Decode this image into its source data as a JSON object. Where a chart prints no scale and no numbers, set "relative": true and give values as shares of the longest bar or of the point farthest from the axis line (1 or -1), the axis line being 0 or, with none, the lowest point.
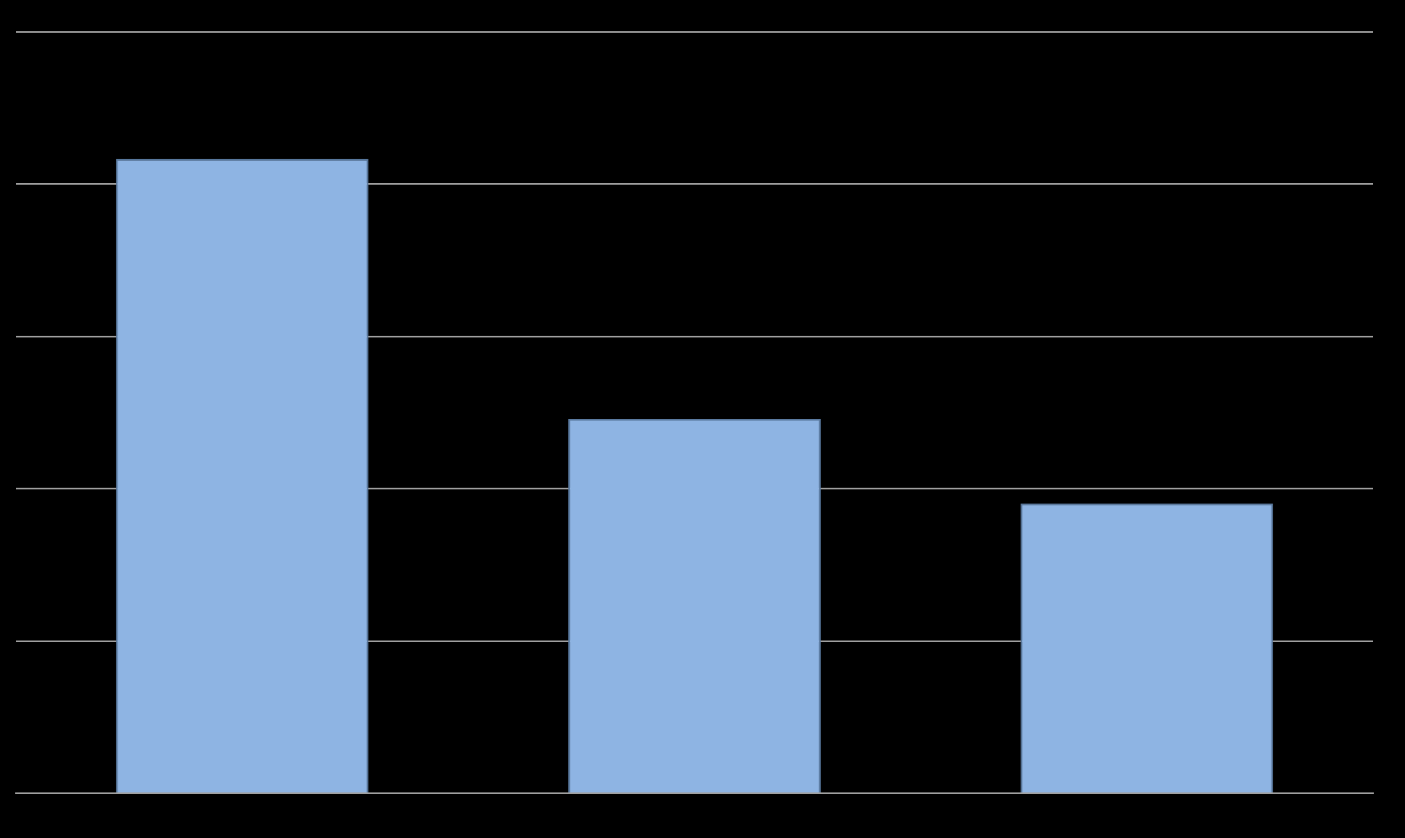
{
  "chart_data": {
    "type": "bar",
    "categories": [
      null,
      null,
      null
    ],
    "values": [
      1,
      0.59,
      0.457
    ],
    "color": "#8eb4e3",
    "relative": true,
    "grid": true
  }
}
